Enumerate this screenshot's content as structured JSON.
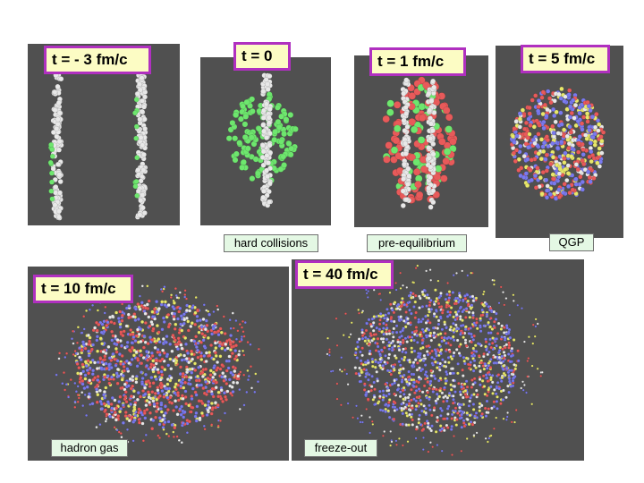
{
  "colors": {
    "panel_bg": "#505050",
    "nucleon": "#e8e8e8",
    "spectator_green": "#6ee66e",
    "qgp_red": "#e85a5a",
    "qgp_blue": "#7a7aee",
    "qgp_yellow": "#e8e86a",
    "time_label_bg": "#fcfcc4",
    "time_label_border": "#b030c0",
    "phase_label_bg": "#e4f8e4"
  },
  "frames": [
    {
      "id": "t-minus-3",
      "time_label": "t  = - 3 fm/c",
      "phase_label": ""
    },
    {
      "id": "t-0",
      "time_label": "t  = 0",
      "phase_label": "hard collisions"
    },
    {
      "id": "t-1",
      "time_label": "t  = 1 fm/c",
      "phase_label": "pre-equilibrium"
    },
    {
      "id": "t-5",
      "time_label": "t  = 5 fm/c",
      "phase_label": "QGP"
    },
    {
      "id": "t-10",
      "time_label": "t  = 10 fm/c",
      "phase_label": "hadron gas"
    },
    {
      "id": "t-40",
      "time_label": "t  = 40 fm/c",
      "phase_label": "freeze-out"
    }
  ]
}
